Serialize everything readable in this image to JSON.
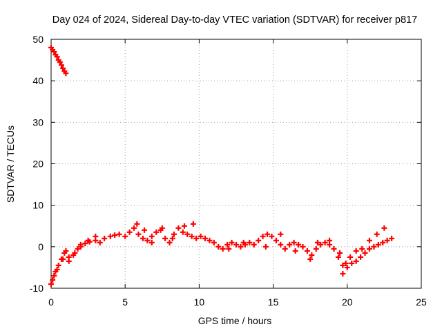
{
  "chart_data": {
    "type": "scatter",
    "title": "Day 024 of 2024, Sidereal Day-to-day VTEC variation (SDTVAR) for receiver p817",
    "xlabel": "GPS time / hours",
    "ylabel": "SDTVAR / TECUs",
    "xlim": [
      0,
      25
    ],
    "ylim": [
      -10,
      50
    ],
    "xticks": [
      0,
      5,
      10,
      15,
      20,
      25
    ],
    "yticks": [
      -10,
      0,
      10,
      20,
      30,
      40,
      50
    ],
    "grid": true,
    "marker": "plus",
    "series": [
      {
        "name": "SDTVAR",
        "color": "#ff0000",
        "x": [
          0.0,
          0.1,
          0.2,
          0.3,
          0.4,
          0.5,
          0.6,
          0.7,
          0.8,
          0.9,
          1.0,
          0.0,
          0.1,
          0.2,
          0.3,
          0.5,
          0.7,
          0.9,
          1.0,
          1.2,
          1.5,
          1.8,
          2.0,
          2.3,
          2.6,
          3.0,
          3.3,
          3.6,
          4.0,
          4.3,
          4.6,
          5.0,
          5.3,
          5.6,
          5.9,
          6.2,
          6.5,
          6.8,
          7.1,
          7.4,
          7.7,
          8.0,
          8.3,
          8.6,
          8.9,
          9.2,
          9.5,
          9.8,
          10.1,
          10.4,
          10.7,
          11.0,
          11.3,
          11.6,
          11.9,
          12.2,
          12.5,
          12.8,
          13.1,
          13.4,
          13.7,
          14.0,
          14.3,
          14.6,
          14.9,
          15.2,
          15.5,
          15.8,
          16.1,
          16.4,
          16.7,
          17.0,
          17.3,
          17.6,
          17.9,
          18.2,
          18.5,
          18.8,
          19.1,
          19.4,
          19.7,
          20.0,
          20.3,
          20.6,
          20.9,
          21.2,
          21.5,
          21.8,
          22.1,
          22.4,
          22.7,
          23.0,
          0.4,
          0.8,
          1.2,
          1.6,
          2.0,
          2.5,
          3.0,
          5.8,
          6.3,
          6.8,
          7.5,
          8.2,
          9.0,
          9.6,
          12.0,
          13.0,
          14.5,
          15.5,
          16.5,
          17.5,
          18.0,
          18.8,
          19.5,
          19.7,
          19.9,
          20.2,
          20.6,
          21.0,
          21.5,
          22.0,
          22.5
        ],
        "y": [
          48.0,
          47.5,
          47.0,
          46.3,
          45.8,
          45.0,
          44.5,
          43.8,
          43.0,
          42.3,
          41.8,
          -9.0,
          -8.0,
          -7.0,
          -6.0,
          -4.5,
          -3.0,
          -1.5,
          -1.0,
          -2.5,
          -2.0,
          -0.5,
          0.0,
          0.8,
          1.2,
          1.5,
          1.0,
          2.0,
          2.5,
          2.8,
          3.0,
          2.5,
          3.5,
          4.5,
          3.0,
          2.0,
          1.5,
          2.5,
          3.5,
          4.0,
          2.0,
          1.0,
          3.0,
          4.5,
          3.5,
          3.0,
          2.5,
          2.0,
          2.5,
          2.0,
          1.5,
          1.0,
          0.0,
          -0.5,
          0.5,
          1.0,
          0.5,
          0.0,
          0.5,
          1.0,
          0.5,
          1.5,
          2.5,
          3.0,
          2.5,
          1.5,
          0.5,
          -0.5,
          0.5,
          1.0,
          0.5,
          0.0,
          -1.0,
          -2.0,
          -0.5,
          0.5,
          1.0,
          0.5,
          -0.5,
          -2.5,
          -4.5,
          -5.0,
          -4.0,
          -3.5,
          -2.5,
          -1.5,
          -0.5,
          0.0,
          0.5,
          1.0,
          1.5,
          2.0,
          -5.5,
          -3.0,
          -3.5,
          -1.5,
          0.5,
          1.5,
          2.5,
          5.5,
          4.0,
          1.0,
          4.5,
          2.0,
          5.0,
          5.5,
          -0.5,
          1.0,
          0.0,
          3.0,
          -1.0,
          -3.0,
          1.0,
          1.5,
          -1.5,
          -6.5,
          -4.0,
          -2.5,
          -1.0,
          -0.5,
          1.5,
          3.0,
          4.5
        ]
      }
    ]
  }
}
